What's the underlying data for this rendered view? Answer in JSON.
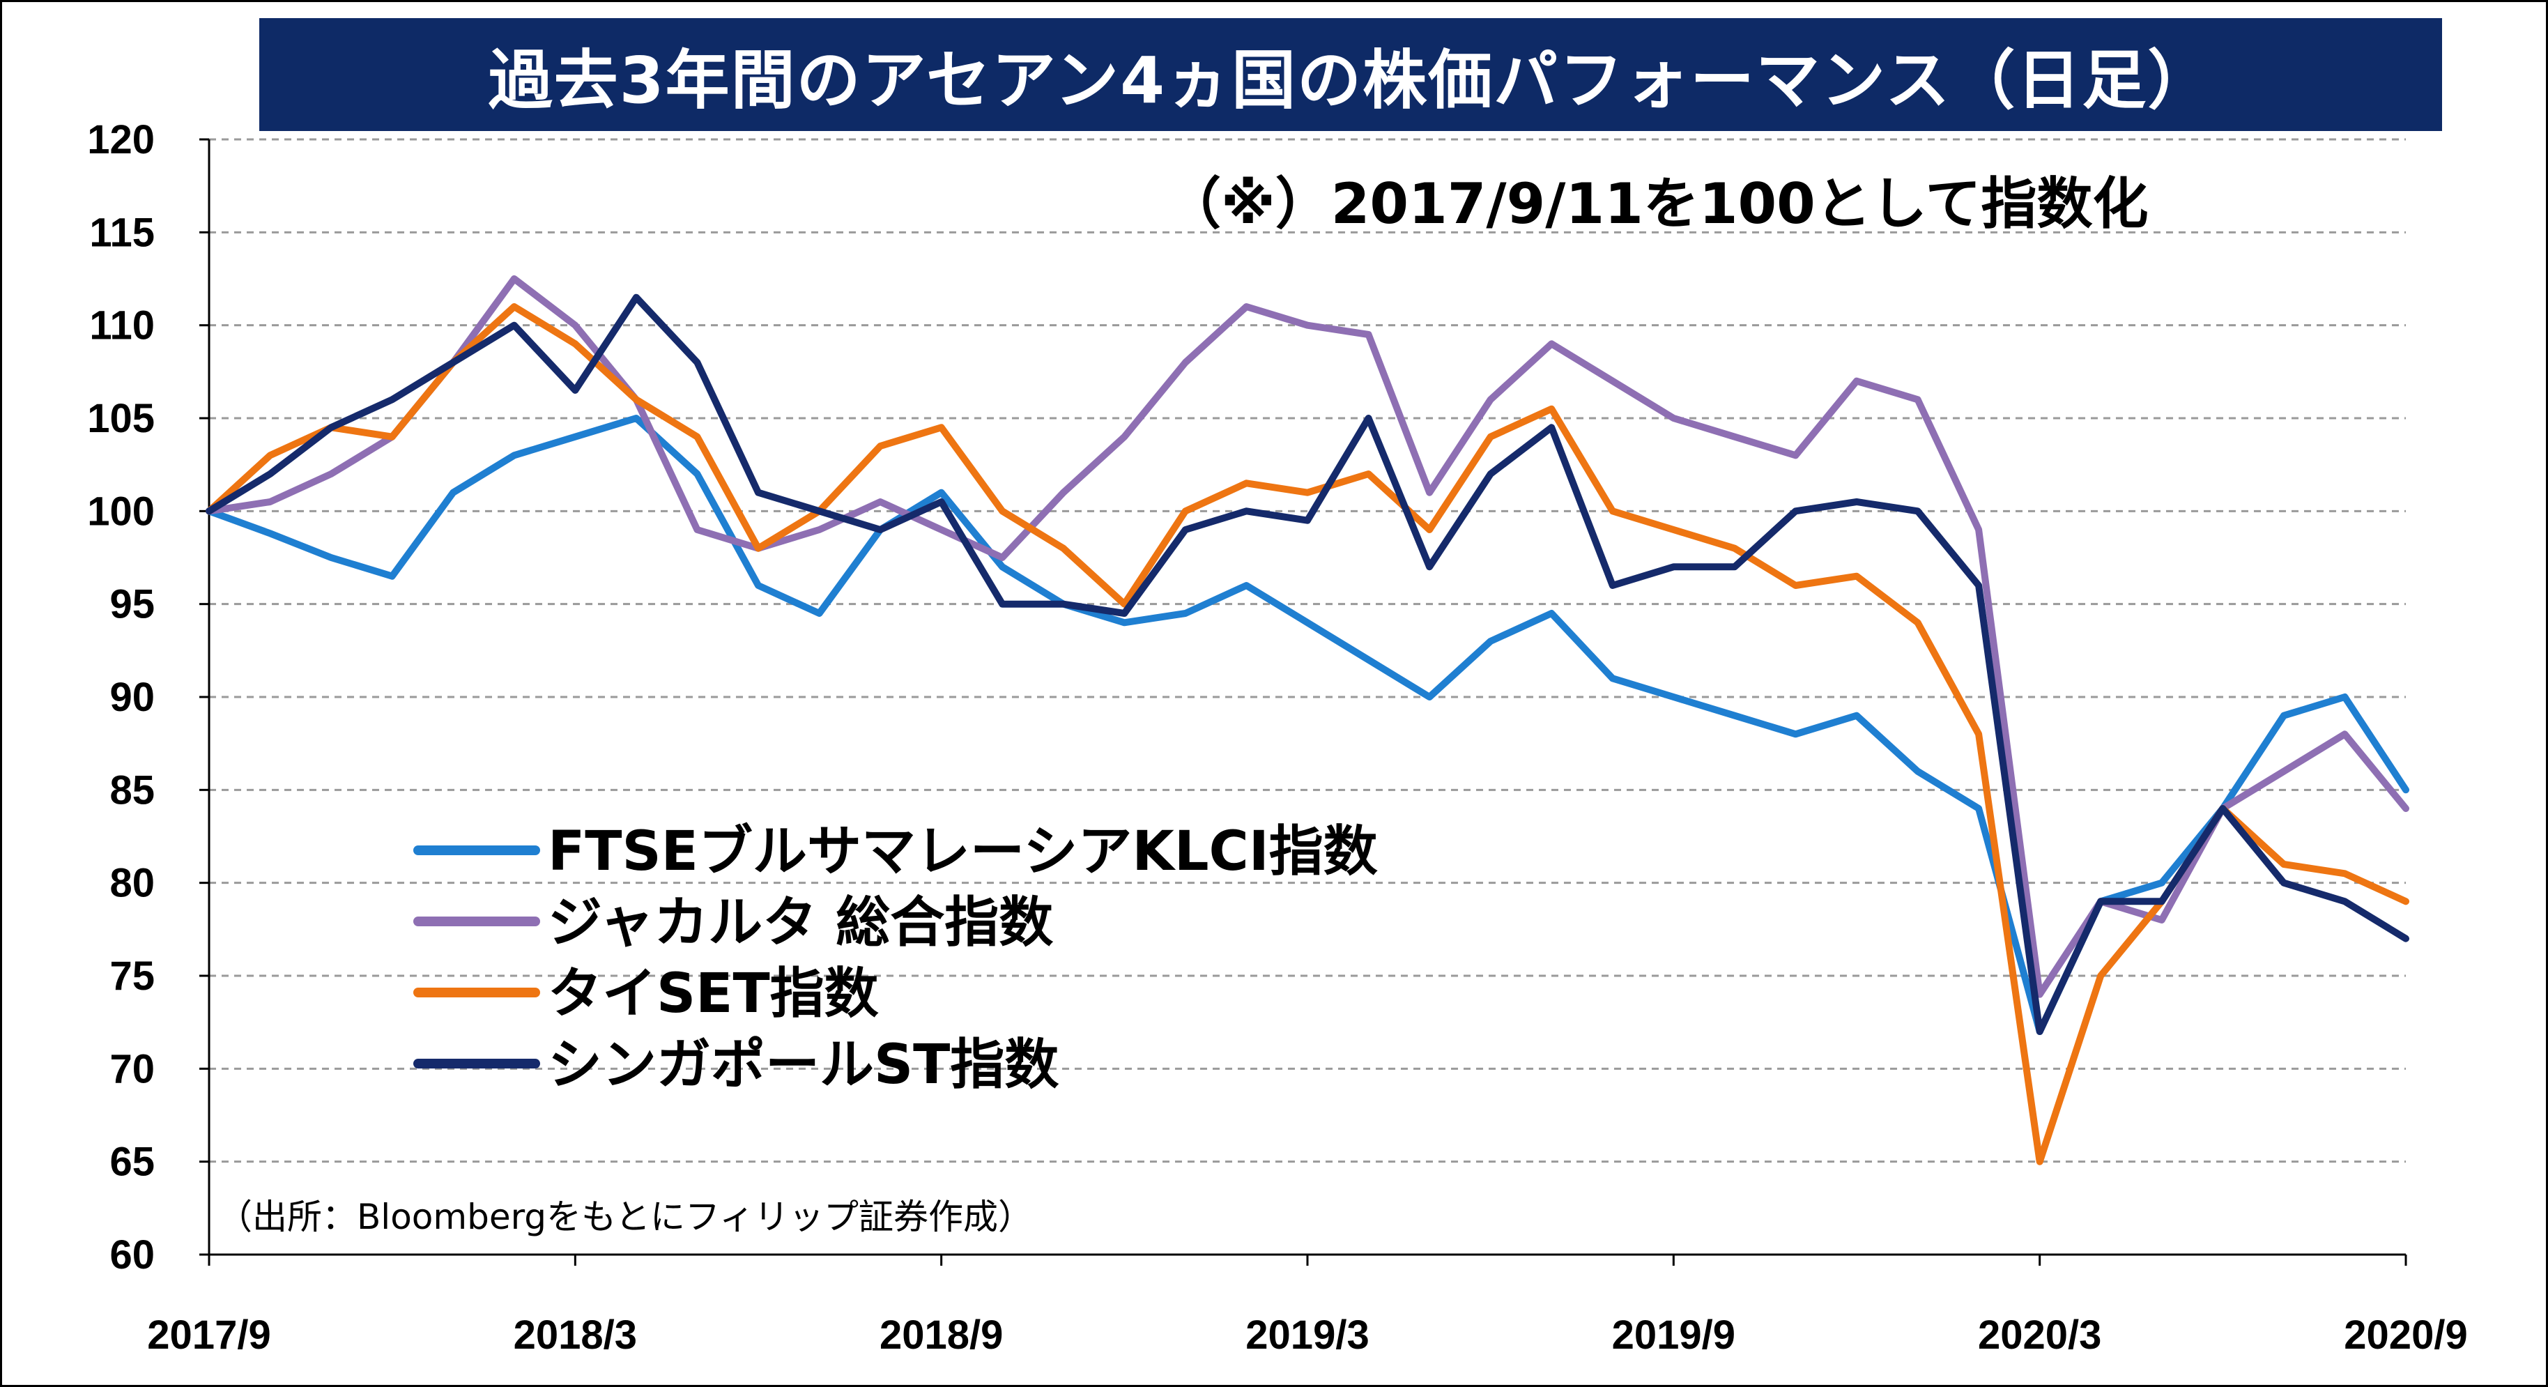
{
  "title": "過去3年間のアセアン4ヵ国の株価パフォーマンス（日足）",
  "note": "（※）2017/9/11を100として指数化",
  "source": "（出所：Bloombergをもとにフィリップ証券作成）",
  "chart_data": {
    "type": "line",
    "title": "過去3年間のアセアン4ヵ国の株価パフォーマンス（日足）",
    "ylim": [
      60,
      120
    ],
    "y_ticks": [
      120,
      115,
      110,
      105,
      100,
      95,
      90,
      85,
      80,
      75,
      70,
      65,
      60
    ],
    "x_ticks": [
      "2017/9",
      "2018/3",
      "2018/9",
      "2019/3",
      "2019/9",
      "2020/3",
      "2020/9"
    ],
    "grid": "horizontal dashed",
    "legend_position": "lower-left",
    "series": [
      {
        "name": "FTSEブルサマレーシアKLCI指数",
        "color": "#1f7fd1",
        "points": [
          [
            "2017/9",
            100
          ],
          [
            "2017/10",
            98.8
          ],
          [
            "2017/11",
            97.5
          ],
          [
            "2017/12",
            96.5
          ],
          [
            "2018/1",
            101
          ],
          [
            "2018/2",
            103
          ],
          [
            "2018/3",
            104
          ],
          [
            "2018/4",
            105
          ],
          [
            "2018/5",
            102
          ],
          [
            "2018/6",
            96
          ],
          [
            "2018/7",
            94.5
          ],
          [
            "2018/8",
            99
          ],
          [
            "2018/9",
            101
          ],
          [
            "2018/10",
            97
          ],
          [
            "2018/11",
            95
          ],
          [
            "2018/12",
            94
          ],
          [
            "2019/1",
            94.5
          ],
          [
            "2019/2",
            96
          ],
          [
            "2019/3",
            94
          ],
          [
            "2019/4",
            92
          ],
          [
            "2019/5",
            90
          ],
          [
            "2019/6",
            93
          ],
          [
            "2019/7",
            94.5
          ],
          [
            "2019/8",
            91
          ],
          [
            "2019/9",
            90
          ],
          [
            "2019/10",
            89
          ],
          [
            "2019/11",
            88
          ],
          [
            "2019/12",
            89
          ],
          [
            "2020/1",
            86
          ],
          [
            "2020/2",
            84
          ],
          [
            "2020/3",
            72
          ],
          [
            "2020/4",
            79
          ],
          [
            "2020/5",
            80
          ],
          [
            "2020/6",
            84
          ],
          [
            "2020/7",
            89
          ],
          [
            "2020/8",
            90
          ],
          [
            "2020/9",
            85
          ]
        ]
      },
      {
        "name": "ジャカルタ 総合指数",
        "color": "#8e6fb3",
        "points": [
          [
            "2017/9",
            100
          ],
          [
            "2017/10",
            100.5
          ],
          [
            "2017/11",
            102
          ],
          [
            "2017/12",
            104
          ],
          [
            "2018/1",
            108
          ],
          [
            "2018/2",
            112.5
          ],
          [
            "2018/3",
            110
          ],
          [
            "2018/4",
            106
          ],
          [
            "2018/5",
            99
          ],
          [
            "2018/6",
            98
          ],
          [
            "2018/7",
            99
          ],
          [
            "2018/8",
            100.5
          ],
          [
            "2018/9",
            99
          ],
          [
            "2018/10",
            97.5
          ],
          [
            "2018/11",
            101
          ],
          [
            "2018/12",
            104
          ],
          [
            "2019/1",
            108
          ],
          [
            "2019/2",
            111
          ],
          [
            "2019/3",
            110
          ],
          [
            "2019/4",
            109.5
          ],
          [
            "2019/5",
            101
          ],
          [
            "2019/6",
            106
          ],
          [
            "2019/7",
            109
          ],
          [
            "2019/8",
            107
          ],
          [
            "2019/9",
            105
          ],
          [
            "2019/10",
            104
          ],
          [
            "2019/11",
            103
          ],
          [
            "2019/12",
            107
          ],
          [
            "2020/1",
            106
          ],
          [
            "2020/2",
            99
          ],
          [
            "2020/3",
            74
          ],
          [
            "2020/4",
            79
          ],
          [
            "2020/5",
            78
          ],
          [
            "2020/6",
            84
          ],
          [
            "2020/7",
            86
          ],
          [
            "2020/8",
            88
          ],
          [
            "2020/9",
            84
          ]
        ]
      },
      {
        "name": "タイSET指数",
        "color": "#ee7512",
        "points": [
          [
            "2017/9",
            100
          ],
          [
            "2017/10",
            103
          ],
          [
            "2017/11",
            104.5
          ],
          [
            "2017/12",
            104
          ],
          [
            "2018/1",
            108
          ],
          [
            "2018/2",
            111
          ],
          [
            "2018/3",
            109
          ],
          [
            "2018/4",
            106
          ],
          [
            "2018/5",
            104
          ],
          [
            "2018/6",
            98
          ],
          [
            "2018/7",
            100
          ],
          [
            "2018/8",
            103.5
          ],
          [
            "2018/9",
            104.5
          ],
          [
            "2018/10",
            100
          ],
          [
            "2018/11",
            98
          ],
          [
            "2018/12",
            95
          ],
          [
            "2019/1",
            100
          ],
          [
            "2019/2",
            101.5
          ],
          [
            "2019/3",
            101
          ],
          [
            "2019/4",
            102
          ],
          [
            "2019/5",
            99
          ],
          [
            "2019/6",
            104
          ],
          [
            "2019/7",
            105.5
          ],
          [
            "2019/8",
            100
          ],
          [
            "2019/9",
            99
          ],
          [
            "2019/10",
            98
          ],
          [
            "2019/11",
            96
          ],
          [
            "2019/12",
            96.5
          ],
          [
            "2020/1",
            94
          ],
          [
            "2020/2",
            88
          ],
          [
            "2020/3",
            65
          ],
          [
            "2020/4",
            75
          ],
          [
            "2020/5",
            79
          ],
          [
            "2020/6",
            84
          ],
          [
            "2020/7",
            81
          ],
          [
            "2020/8",
            80.5
          ],
          [
            "2020/9",
            79
          ]
        ]
      },
      {
        "name": "シンガポールST指数",
        "color": "#152a6b",
        "points": [
          [
            "2017/9",
            100
          ],
          [
            "2017/10",
            102
          ],
          [
            "2017/11",
            104.5
          ],
          [
            "2017/12",
            106
          ],
          [
            "2018/1",
            108
          ],
          [
            "2018/2",
            110
          ],
          [
            "2018/3",
            106.5
          ],
          [
            "2018/4",
            111.5
          ],
          [
            "2018/5",
            108
          ],
          [
            "2018/6",
            101
          ],
          [
            "2018/7",
            100
          ],
          [
            "2018/8",
            99
          ],
          [
            "2018/9",
            100.5
          ],
          [
            "2018/10",
            95
          ],
          [
            "2018/11",
            95
          ],
          [
            "2018/12",
            94.5
          ],
          [
            "2019/1",
            99
          ],
          [
            "2019/2",
            100
          ],
          [
            "2019/3",
            99.5
          ],
          [
            "2019/4",
            105
          ],
          [
            "2019/5",
            97
          ],
          [
            "2019/6",
            102
          ],
          [
            "2019/7",
            104.5
          ],
          [
            "2019/8",
            96
          ],
          [
            "2019/9",
            97
          ],
          [
            "2019/10",
            97
          ],
          [
            "2019/11",
            100
          ],
          [
            "2019/12",
            100.5
          ],
          [
            "2020/1",
            100
          ],
          [
            "2020/2",
            96
          ],
          [
            "2020/3",
            72
          ],
          [
            "2020/4",
            79
          ],
          [
            "2020/5",
            79
          ],
          [
            "2020/6",
            84
          ],
          [
            "2020/7",
            80
          ],
          [
            "2020/8",
            79
          ],
          [
            "2020/9",
            77
          ]
        ]
      }
    ]
  }
}
